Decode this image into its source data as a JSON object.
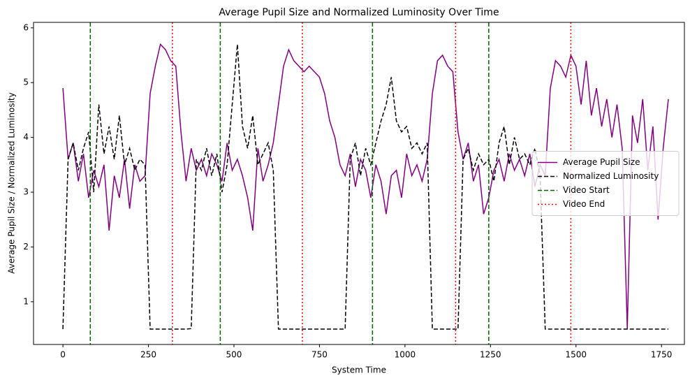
{
  "chart_data": {
    "type": "line",
    "title": "Average Pupil Size and Normalized Luminosity Over Time",
    "xlabel": "System Time",
    "ylabel": "Average Pupil Size / Normalized Luminosity",
    "x": [
      0,
      15,
      30,
      45,
      60,
      75,
      90,
      105,
      120,
      135,
      150,
      165,
      180,
      195,
      210,
      225,
      240,
      255,
      270,
      285,
      300,
      315,
      330,
      345,
      360,
      375,
      390,
      405,
      420,
      435,
      450,
      465,
      480,
      495,
      510,
      525,
      540,
      555,
      570,
      585,
      600,
      615,
      630,
      645,
      660,
      675,
      690,
      705,
      720,
      735,
      750,
      765,
      780,
      795,
      810,
      825,
      840,
      855,
      870,
      885,
      900,
      915,
      930,
      945,
      960,
      975,
      990,
      1005,
      1020,
      1035,
      1050,
      1065,
      1080,
      1095,
      1110,
      1125,
      1140,
      1155,
      1170,
      1185,
      1200,
      1215,
      1230,
      1245,
      1260,
      1275,
      1290,
      1305,
      1320,
      1335,
      1350,
      1365,
      1380,
      1395,
      1410,
      1425,
      1440,
      1455,
      1470,
      1485,
      1500,
      1515,
      1530,
      1545,
      1560,
      1575,
      1590,
      1605,
      1620,
      1635,
      1650,
      1665,
      1680,
      1695,
      1710,
      1725,
      1740,
      1755,
      1770
    ],
    "series": [
      {
        "name": "Average Pupil Size",
        "color": "#800080",
        "dash": "solid",
        "values": [
          4.9,
          3.6,
          3.9,
          3.2,
          3.7,
          2.9,
          3.4,
          3.1,
          3.5,
          2.3,
          3.3,
          2.9,
          3.6,
          2.7,
          3.5,
          3.2,
          3.3,
          4.8,
          5.3,
          5.7,
          5.6,
          5.4,
          5.3,
          4.1,
          3.2,
          3.8,
          3.4,
          3.6,
          3.3,
          3.7,
          3.5,
          3.2,
          3.9,
          3.4,
          3.6,
          3.3,
          2.9,
          2.3,
          3.8,
          3.2,
          3.5,
          3.9,
          4.6,
          5.3,
          5.6,
          5.4,
          5.3,
          5.2,
          5.3,
          5.2,
          5.1,
          4.8,
          4.3,
          4.0,
          3.5,
          3.3,
          3.7,
          3.1,
          3.6,
          3.4,
          2.9,
          3.5,
          3.2,
          2.6,
          3.3,
          3.4,
          2.9,
          3.7,
          3.3,
          3.5,
          3.2,
          3.6,
          4.8,
          5.4,
          5.5,
          5.3,
          5.2,
          4.1,
          3.6,
          3.9,
          3.2,
          3.5,
          2.6,
          2.9,
          3.4,
          3.6,
          3.2,
          3.7,
          3.4,
          3.6,
          3.3,
          3.7,
          3.1,
          3.5,
          3.3,
          4.9,
          5.4,
          5.3,
          5.1,
          5.5,
          5.3,
          4.6,
          5.4,
          4.4,
          4.9,
          4.2,
          4.7,
          4.0,
          4.6,
          3.8,
          0.5,
          4.4,
          3.9,
          4.7,
          3.4,
          4.2,
          2.5,
          3.8,
          4.7
        ]
      },
      {
        "name": "Normalized Luminosity",
        "color": "#000000",
        "dash": "dashed",
        "values": [
          0.5,
          3.6,
          3.9,
          3.4,
          3.8,
          4.1,
          3.0,
          4.6,
          3.7,
          4.2,
          3.6,
          4.4,
          3.5,
          3.8,
          3.4,
          3.6,
          3.5,
          0.5,
          0.5,
          0.5,
          0.5,
          0.5,
          0.5,
          0.5,
          0.5,
          0.51,
          3.6,
          3.4,
          3.8,
          3.3,
          3.7,
          3.0,
          3.5,
          4.6,
          5.7,
          4.2,
          3.8,
          4.4,
          3.5,
          3.7,
          3.9,
          3.4,
          0.5,
          0.5,
          0.5,
          0.5,
          0.5,
          0.5,
          0.5,
          0.5,
          0.5,
          0.5,
          0.5,
          0.5,
          0.5,
          0.5,
          3.6,
          3.9,
          3.3,
          3.8,
          3.5,
          3.9,
          4.3,
          4.6,
          5.1,
          4.3,
          4.1,
          4.2,
          3.8,
          3.9,
          3.7,
          3.9,
          0.5,
          0.5,
          0.5,
          0.5,
          0.5,
          0.5,
          3.6,
          3.8,
          3.4,
          3.7,
          3.5,
          3.6,
          3.2,
          3.9,
          4.2,
          3.5,
          4.0,
          3.6,
          3.7,
          3.5,
          3.8,
          3.3,
          0.5,
          0.5,
          0.5,
          0.5,
          0.5,
          0.5,
          0.5,
          0.5,
          0.5,
          0.5,
          0.5,
          0.5,
          0.5,
          0.5,
          0.5,
          0.5,
          0.5,
          0.5,
          0.5,
          0.5,
          0.5,
          0.5,
          0.5,
          0.5,
          0.5
        ]
      }
    ],
    "vlines": [
      {
        "name": "Video Start",
        "color": "#006400",
        "dash": "dashed",
        "x": [
          80,
          460,
          905,
          1245
        ]
      },
      {
        "name": "Video End",
        "color": "#ff0000",
        "dash": "dotted",
        "x": [
          320,
          700,
          1148,
          1485
        ]
      }
    ],
    "xlim": [
      -86,
      1817
    ],
    "ylim": [
      0.22,
      6.1
    ],
    "xticks": [
      0,
      250,
      500,
      750,
      1000,
      1250,
      1500,
      1750
    ],
    "yticks": [
      1,
      2,
      3,
      4,
      5,
      6
    ],
    "legend": "right"
  }
}
